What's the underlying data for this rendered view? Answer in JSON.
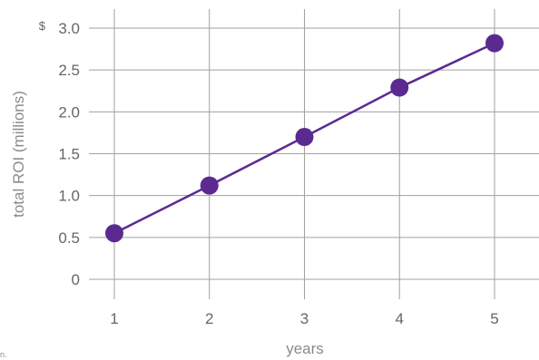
{
  "chart_data": {
    "type": "line",
    "title": "",
    "xlabel": "years",
    "ylabel": "total ROI (millions)",
    "y_tick_prefix": "$",
    "x": [
      1,
      2,
      3,
      4,
      5
    ],
    "series": [
      {
        "values": [
          0.55,
          1.12,
          1.7,
          2.29,
          2.82
        ]
      }
    ],
    "x_ticks": [
      "1",
      "2",
      "3",
      "4",
      "5"
    ],
    "y_ticks": [
      "0",
      "0.5",
      "1.0",
      "1.5",
      "2.0",
      "2.5",
      "3.0"
    ],
    "xlim": [
      1,
      5
    ],
    "ylim": [
      0,
      3.0
    ],
    "grid": true,
    "legend": "none",
    "colors": {
      "series": "#5b2a91",
      "grid": "#a0a0a0",
      "text": "#666666"
    },
    "source_fragment": "n."
  }
}
